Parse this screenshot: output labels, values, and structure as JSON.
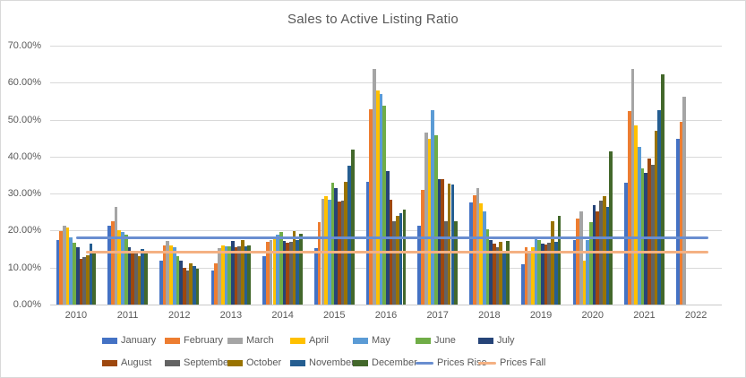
{
  "chart_data": {
    "type": "bar",
    "title": "Sales to Active Listing Ratio",
    "xlabel": "",
    "ylabel": "",
    "ylim": [
      0,
      70
    ],
    "ytick_step": 10,
    "yticks": [
      "0.00%",
      "10.00%",
      "20.00%",
      "30.00%",
      "40.00%",
      "50.00%",
      "60.00%",
      "70.00%"
    ],
    "grid": true,
    "legend_position": "bottom",
    "categories": [
      "2010",
      "2011",
      "2012",
      "2013",
      "2014",
      "2015",
      "2016",
      "2017",
      "2018",
      "2019",
      "2020",
      "2021",
      "2022"
    ],
    "series": [
      {
        "name": "January",
        "color": "#4472C4",
        "values": [
          17.5,
          21.2,
          11.8,
          9.1,
          13.2,
          15.3,
          33.3,
          21.2,
          27.5,
          11.0,
          17.5,
          33.0,
          44.7
        ]
      },
      {
        "name": "February",
        "color": "#ED7D31",
        "values": [
          19.8,
          22.6,
          15.9,
          11.2,
          16.9,
          22.2,
          52.7,
          31.1,
          29.5,
          15.4,
          23.3,
          52.4,
          49.3
        ]
      },
      {
        "name": "March",
        "color": "#A5A5A5",
        "values": [
          21.4,
          26.3,
          17.1,
          15.3,
          17.4,
          28.7,
          63.6,
          46.5,
          31.5,
          14.6,
          25.1,
          63.6,
          56.1
        ]
      },
      {
        "name": "April",
        "color": "#FFC000",
        "values": [
          20.9,
          20.1,
          15.9,
          16.1,
          18.0,
          29.2,
          58.0,
          44.9,
          27.4,
          15.4,
          11.8,
          48.4,
          null
        ]
      },
      {
        "name": "May",
        "color": "#5B9BD5",
        "values": [
          18.1,
          19.6,
          15.4,
          15.7,
          18.8,
          28.3,
          56.9,
          52.5,
          25.2,
          18.0,
          17.5,
          42.7,
          null
        ]
      },
      {
        "name": "June",
        "color": "#70AD47",
        "values": [
          16.6,
          19.0,
          13.0,
          15.7,
          19.6,
          33.0,
          53.8,
          45.9,
          20.4,
          17.4,
          22.3,
          36.7,
          null
        ]
      },
      {
        "name": "July",
        "color": "#264478",
        "values": [
          15.6,
          15.5,
          11.8,
          17.2,
          17.3,
          31.6,
          36.1,
          34.0,
          17.4,
          16.4,
          27.0,
          35.5,
          null
        ]
      },
      {
        "name": "August",
        "color": "#9E480E",
        "values": [
          12.4,
          14.1,
          10.0,
          15.6,
          16.7,
          27.8,
          28.3,
          33.8,
          16.4,
          16.3,
          25.2,
          39.5,
          null
        ]
      },
      {
        "name": "September",
        "color": "#636363",
        "values": [
          12.8,
          14.4,
          9.1,
          15.7,
          16.9,
          28.2,
          22.5,
          22.6,
          15.4,
          16.7,
          28.0,
          37.7,
          null
        ]
      },
      {
        "name": "October",
        "color": "#997300",
        "values": [
          13.4,
          13.2,
          11.2,
          17.4,
          19.8,
          33.2,
          24.1,
          32.7,
          16.9,
          22.6,
          29.4,
          46.9,
          null
        ]
      },
      {
        "name": "November",
        "color": "#255E91",
        "values": [
          16.4,
          14.9,
          10.4,
          15.8,
          17.4,
          37.5,
          24.7,
          32.4,
          13.8,
          17.0,
          26.5,
          52.6,
          null
        ]
      },
      {
        "name": "December",
        "color": "#43682B",
        "values": [
          14.6,
          14.5,
          9.6,
          16.0,
          19.1,
          41.8,
          25.7,
          22.5,
          17.2,
          24.0,
          41.5,
          62.2,
          null
        ]
      }
    ],
    "ref_lines": [
      {
        "name": "Prices Rise",
        "color": "#698ED0",
        "value": 18
      },
      {
        "name": "Prices Fall",
        "color": "#F4B183",
        "value": 14
      }
    ],
    "legend_rows": [
      [
        "January",
        "February",
        "March",
        "April",
        "May",
        "June",
        "July"
      ],
      [
        "August",
        "September",
        "October",
        "November",
        "December",
        "Prices Rise",
        "Prices Fall"
      ]
    ]
  }
}
